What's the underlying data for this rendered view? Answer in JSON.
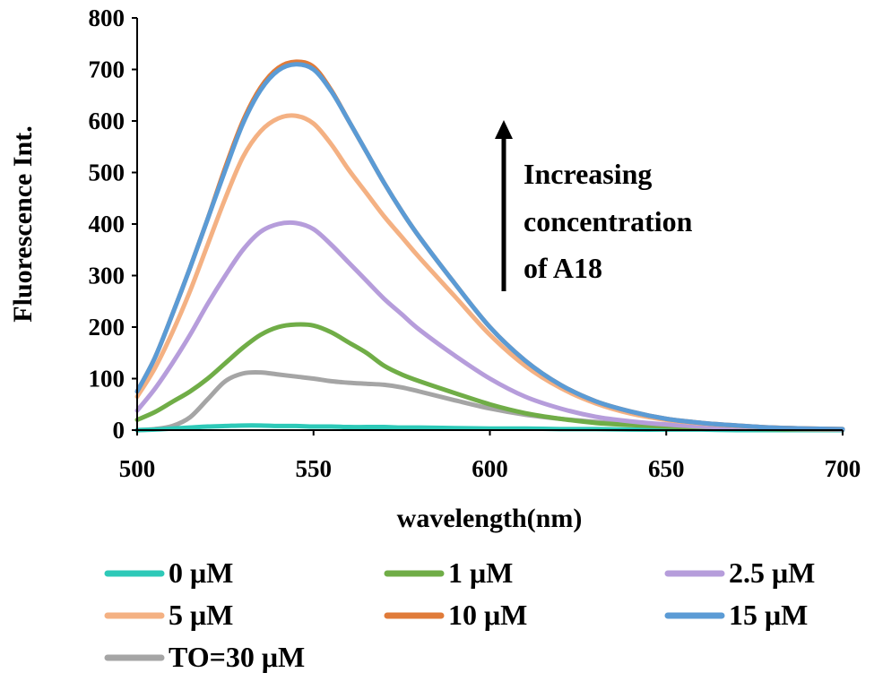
{
  "chart_data": {
    "type": "line",
    "title": "",
    "xlabel": "wavelength(nm)",
    "ylabel": "Fluorescence Int.",
    "xlim": [
      500,
      700
    ],
    "ylim": [
      0,
      800
    ],
    "xticks": [
      "500",
      "550",
      "600",
      "650",
      "700"
    ],
    "yticks": [
      "0",
      "100",
      "200",
      "300",
      "400",
      "500",
      "600",
      "700",
      "800"
    ],
    "grid": false,
    "legend_position": "bottom",
    "annotation": {
      "lines": [
        "Increasing",
        "concentration",
        "of A18"
      ],
      "arrow": "up"
    },
    "x": [
      500,
      505,
      510,
      515,
      520,
      525,
      530,
      535,
      540,
      545,
      550,
      555,
      560,
      565,
      570,
      575,
      580,
      590,
      600,
      610,
      620,
      630,
      640,
      650,
      660,
      670,
      680,
      690,
      700
    ],
    "series": [
      {
        "name": "0 μM",
        "color": "#2ec9b8",
        "values": [
          0,
          1,
          3,
          5,
          7,
          8,
          9,
          9,
          8,
          8,
          7,
          7,
          6,
          6,
          6,
          5,
          5,
          4,
          3,
          3,
          2,
          2,
          1,
          1,
          1,
          0,
          0,
          0,
          0
        ]
      },
      {
        "name": "1 μM",
        "color": "#70ad47",
        "values": [
          20,
          35,
          55,
          75,
          100,
          130,
          160,
          185,
          200,
          205,
          203,
          190,
          170,
          150,
          125,
          108,
          95,
          72,
          50,
          33,
          22,
          14,
          10,
          7,
          5,
          3,
          2,
          1,
          1
        ]
      },
      {
        "name": "2.5 μM",
        "color": "#b69ddb",
        "values": [
          38,
          80,
          130,
          185,
          245,
          300,
          350,
          385,
          400,
          402,
          390,
          360,
          325,
          290,
          255,
          225,
          195,
          145,
          100,
          65,
          42,
          26,
          17,
          11,
          7,
          5,
          3,
          2,
          1
        ]
      },
      {
        "name": "5 μM",
        "color": "#f4b183",
        "values": [
          65,
          120,
          190,
          270,
          360,
          450,
          530,
          580,
          605,
          610,
          595,
          555,
          505,
          460,
          415,
          375,
          335,
          260,
          185,
          125,
          82,
          52,
          32,
          20,
          13,
          8,
          5,
          3,
          2
        ]
      },
      {
        "name": "10 μM",
        "color": "#e07b39",
        "values": [
          75,
          140,
          225,
          315,
          410,
          510,
          600,
          665,
          703,
          715,
          705,
          660,
          600,
          540,
          480,
          425,
          375,
          285,
          200,
          135,
          88,
          56,
          36,
          22,
          14,
          9,
          5,
          3,
          2
        ]
      },
      {
        "name": "15 μM",
        "color": "#5b9bd5",
        "values": [
          75,
          140,
          225,
          315,
          410,
          505,
          595,
          660,
          698,
          710,
          700,
          658,
          600,
          540,
          480,
          425,
          375,
          285,
          200,
          135,
          88,
          56,
          36,
          22,
          14,
          9,
          5,
          3,
          2
        ]
      },
      {
        "name": "TO=30 μM",
        "color": "#a5a5a5",
        "values": [
          0,
          2,
          8,
          25,
          60,
          95,
          110,
          112,
          108,
          104,
          100,
          95,
          92,
          90,
          88,
          83,
          75,
          58,
          42,
          30,
          22,
          16,
          11,
          7,
          5,
          3,
          2,
          1,
          0
        ]
      }
    ]
  }
}
